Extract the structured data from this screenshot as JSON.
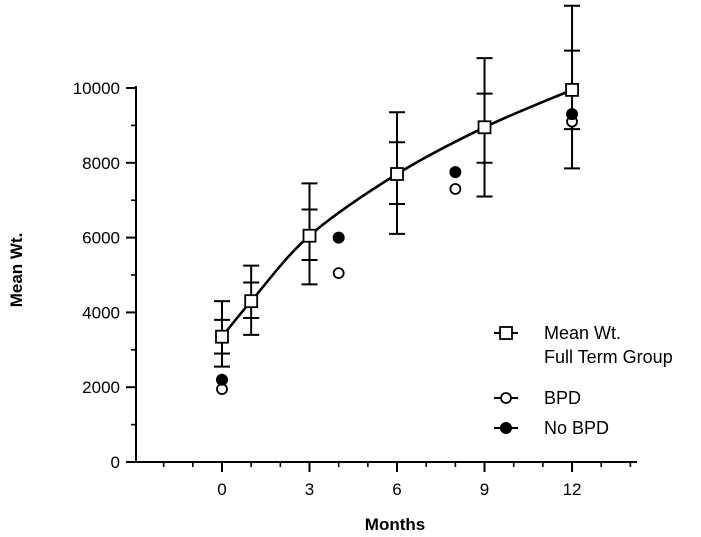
{
  "chart_data": {
    "type": "line",
    "xlabel": "Months",
    "ylabel": "Mean Wt.",
    "xlim": [
      -2.9,
      14.4
    ],
    "ylim": [
      0,
      10000
    ],
    "x_ticks": [
      0,
      3,
      6,
      9,
      12
    ],
    "x_minor_ticks": [
      -2,
      -1,
      1,
      2,
      4,
      5,
      7,
      8,
      10,
      11,
      13,
      14
    ],
    "y_ticks": [
      0,
      2000,
      4000,
      6000,
      8000,
      10000
    ],
    "y_minor_ticks": [
      1000,
      3000,
      5000,
      7000,
      9000
    ],
    "grid": false,
    "legend_position": "right",
    "series": [
      {
        "name": "Mean Wt. Full Term Group",
        "legend_lines": [
          "Mean Wt.",
          "Full Term Group"
        ],
        "marker": "open-square",
        "x": [
          0,
          1,
          3,
          6,
          9,
          12
        ],
        "y": [
          3350,
          4300,
          6050,
          7700,
          8950,
          9950
        ],
        "err_outer": [
          [
            2550,
            4300
          ],
          [
            3400,
            5250
          ],
          [
            4750,
            7450
          ],
          [
            6100,
            9350
          ],
          [
            7100,
            10800
          ],
          [
            7850,
            12200
          ]
        ],
        "err_inner": [
          [
            2900,
            3800
          ],
          [
            3850,
            4800
          ],
          [
            5400,
            6750
          ],
          [
            6900,
            8550
          ],
          [
            8000,
            9850
          ],
          [
            8900,
            11000
          ]
        ]
      },
      {
        "name": "BPD",
        "legend_lines": [
          "BPD"
        ],
        "marker": "open-circle",
        "x": [
          0,
          4,
          8,
          12
        ],
        "y": [
          1950,
          5050,
          7300,
          9100
        ]
      },
      {
        "name": "No BPD",
        "legend_lines": [
          "No BPD"
        ],
        "marker": "filled-circle",
        "x": [
          0,
          4,
          8,
          12
        ],
        "y": [
          2200,
          6000,
          7750,
          9300
        ]
      }
    ]
  }
}
